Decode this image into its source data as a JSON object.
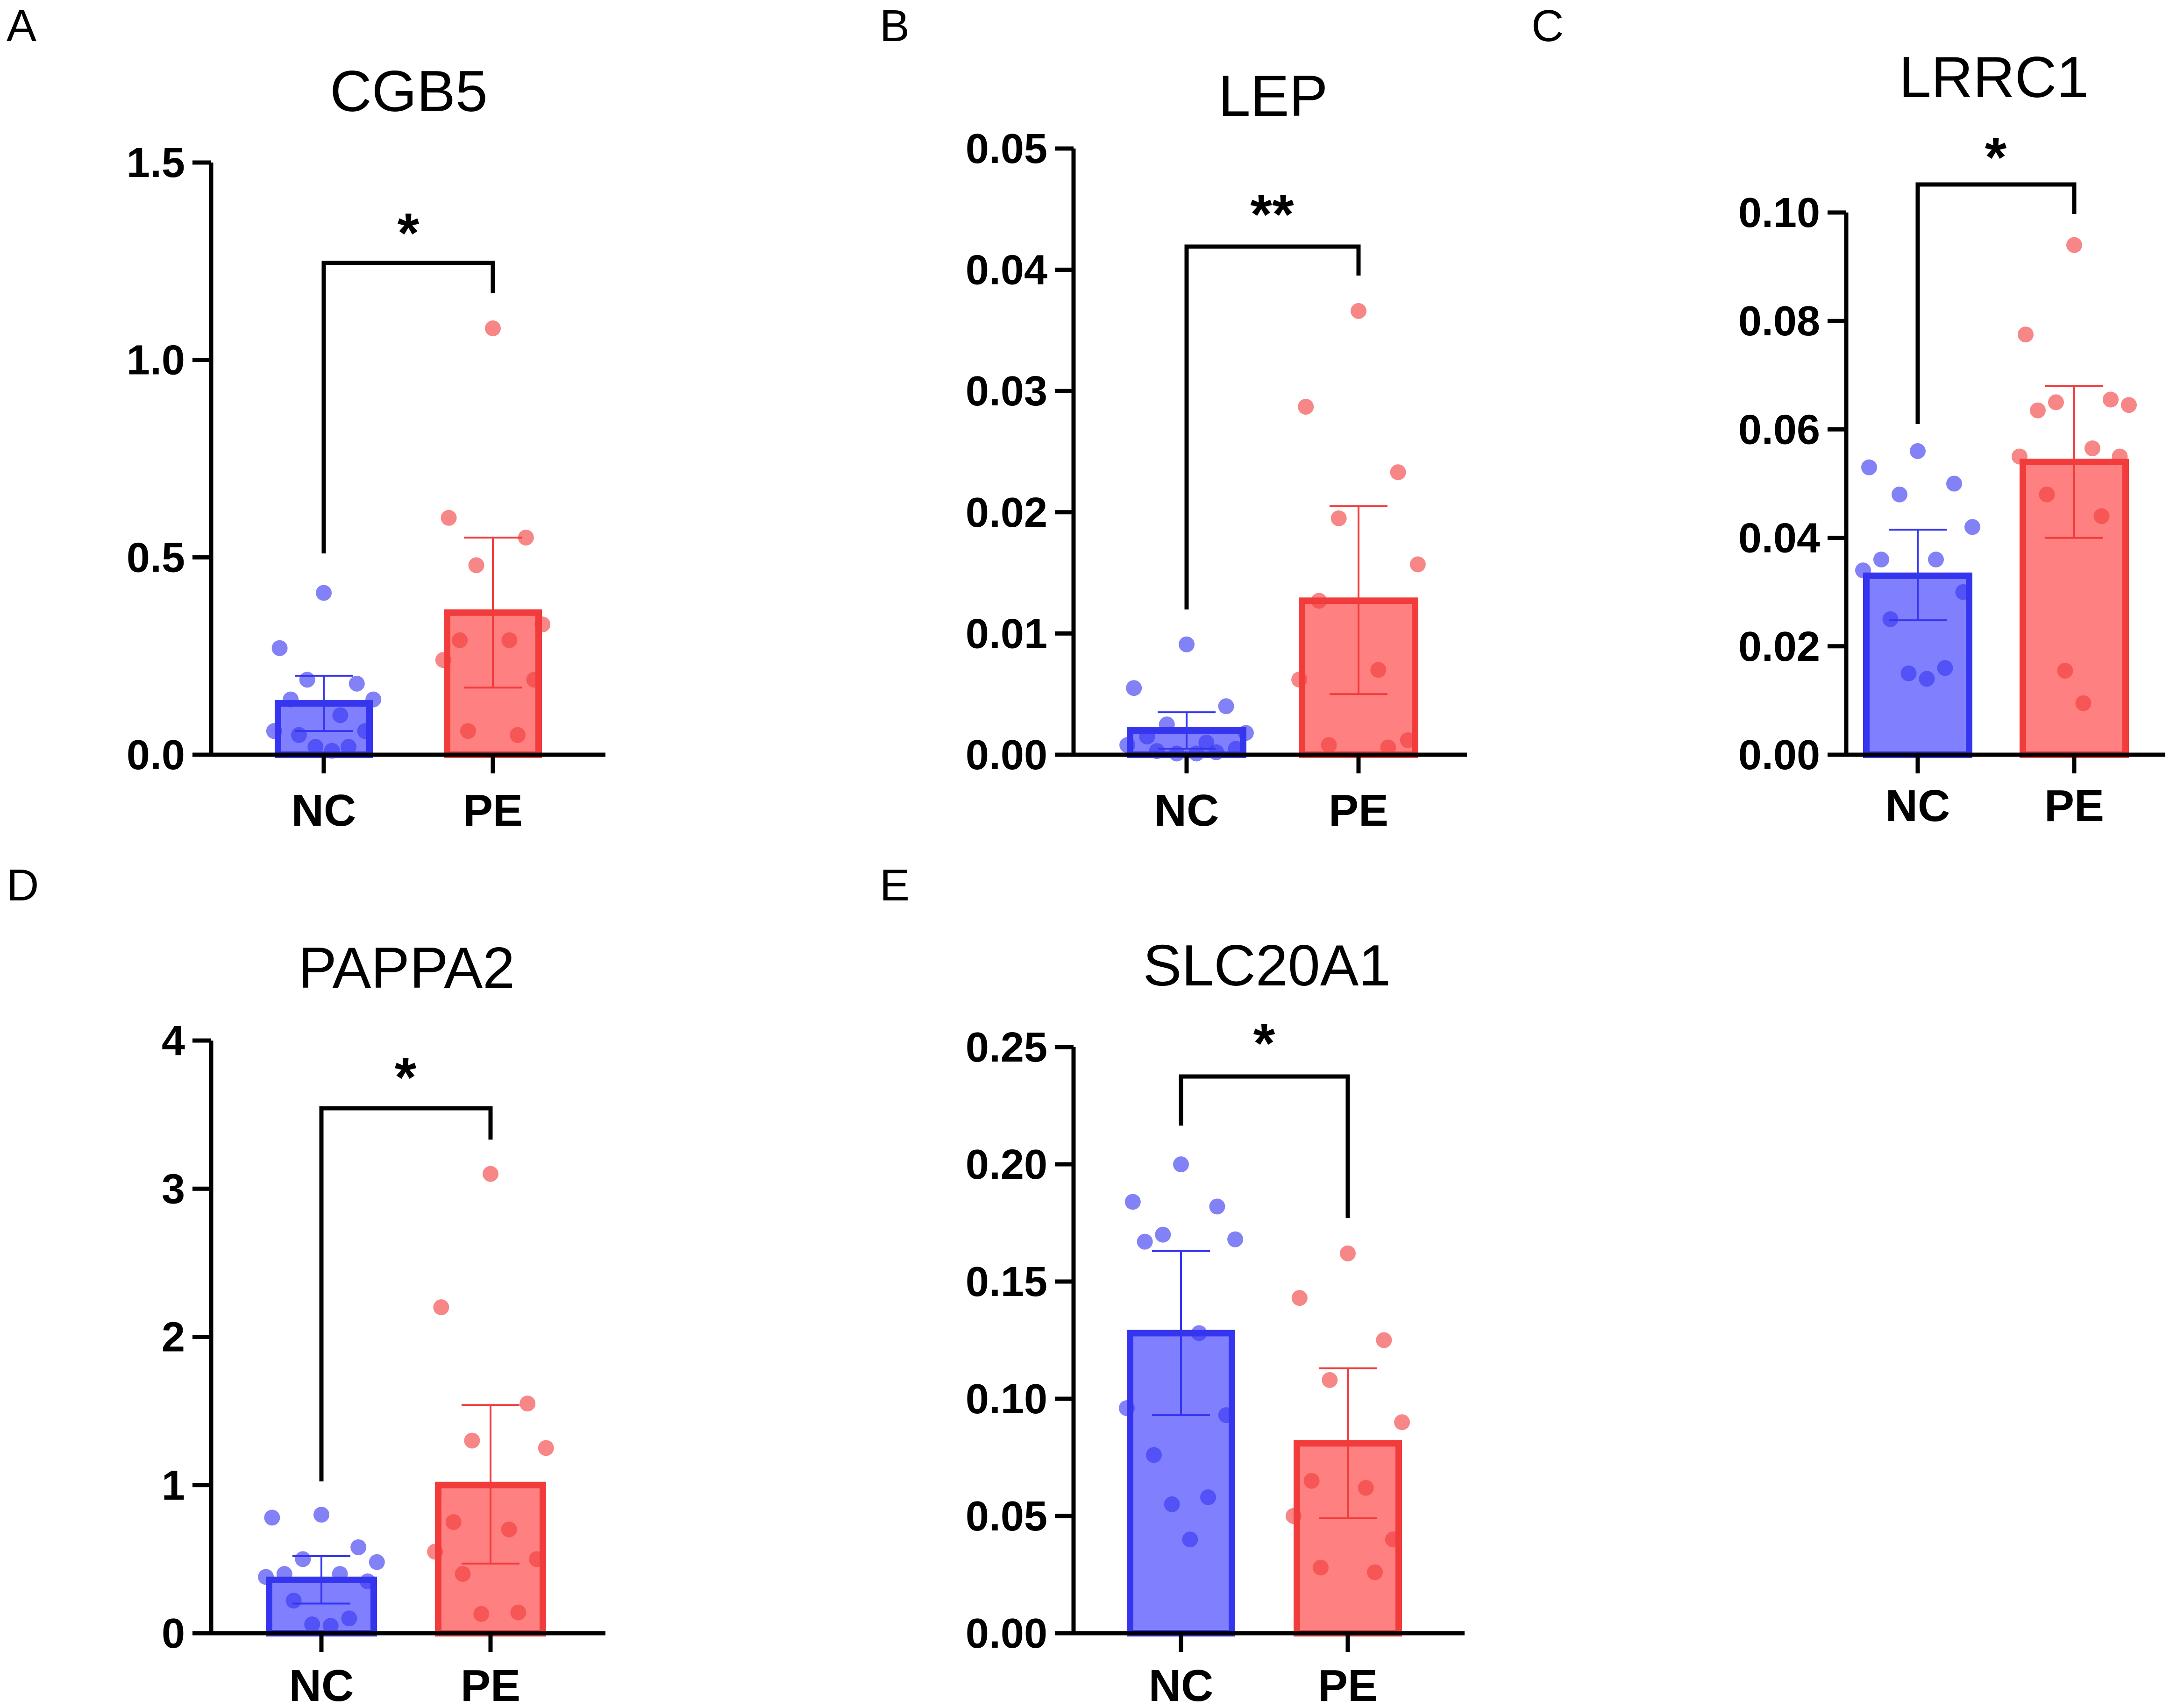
{
  "colors": {
    "nc_fill": "#8080FF",
    "nc_edge": "#3535F0",
    "nc_dot": "#3535F0",
    "pe_fill": "#FF8080",
    "pe_edge": "#F23B3B",
    "pe_dot": "#F23B3B",
    "axis": "#000000"
  },
  "chart_data": [
    {
      "panel": "A",
      "type": "bar",
      "title": "CGB5",
      "categories": [
        "NC",
        "PE"
      ],
      "ylim": [
        0,
        1.5
      ],
      "yticks": [
        "0.0",
        "0.5",
        "1.0",
        "1.5"
      ],
      "yticks_values": [
        0,
        0.5,
        1.0,
        1.5
      ],
      "series": [
        {
          "name": "NC",
          "mean": 0.13,
          "sd_low": 0.06,
          "sd_high": 0.2,
          "points": [
            0.41,
            0.27,
            0.18,
            0.19,
            0.14,
            0.14,
            0.1,
            0.06,
            0.06,
            0.05,
            0.02,
            0.02,
            0.01
          ]
        },
        {
          "name": "PE",
          "mean": 0.36,
          "sd_low": 0.17,
          "sd_high": 0.55,
          "points": [
            1.08,
            0.6,
            0.55,
            0.48,
            0.33,
            0.29,
            0.29,
            0.24,
            0.19,
            0.06,
            0.05
          ]
        }
      ],
      "significance": "*"
    },
    {
      "panel": "B",
      "type": "bar",
      "title": "LEP",
      "categories": [
        "NC",
        "PE"
      ],
      "ylim": [
        0,
        0.05
      ],
      "yticks": [
        "0.00",
        "0.01",
        "0.02",
        "0.03",
        "0.04",
        "0.05"
      ],
      "yticks_values": [
        0,
        0.01,
        0.02,
        0.03,
        0.04,
        0.05
      ],
      "series": [
        {
          "name": "NC",
          "mean": 0.002,
          "sd_low": 0.0005,
          "sd_high": 0.0035,
          "points": [
            0.0091,
            0.0055,
            0.004,
            0.0025,
            0.0018,
            0.0015,
            0.001,
            0.0008,
            0.0005,
            0.0003,
            0.0002,
            0.0001,
            0.0001
          ]
        },
        {
          "name": "PE",
          "mean": 0.0127,
          "sd_low": 0.005,
          "sd_high": 0.0205,
          "points": [
            0.0366,
            0.0287,
            0.0233,
            0.0195,
            0.0157,
            0.0127,
            0.007,
            0.0062,
            0.0012,
            0.0008,
            0.0006
          ]
        }
      ],
      "significance": "**"
    },
    {
      "panel": "C",
      "type": "bar",
      "title": "LRRC1",
      "categories": [
        "NC",
        "PE"
      ],
      "ylim": [
        0,
        0.1
      ],
      "yticks": [
        "0.00",
        "0.02",
        "0.04",
        "0.06",
        "0.08",
        "0.10"
      ],
      "yticks_values": [
        0,
        0.02,
        0.04,
        0.06,
        0.08,
        0.1
      ],
      "series": [
        {
          "name": "NC",
          "mean": 0.033,
          "sd_low": 0.0248,
          "sd_high": 0.0415,
          "points": [
            0.056,
            0.053,
            0.05,
            0.048,
            0.042,
            0.036,
            0.036,
            0.034,
            0.03,
            0.025,
            0.016,
            0.015,
            0.014
          ]
        },
        {
          "name": "PE",
          "mean": 0.054,
          "sd_low": 0.04,
          "sd_high": 0.068,
          "points": [
            0.094,
            0.0775,
            0.0655,
            0.065,
            0.0645,
            0.0635,
            0.0565,
            0.055,
            0.055,
            0.048,
            0.044,
            0.0155,
            0.0095
          ]
        }
      ],
      "significance": "*"
    },
    {
      "panel": "D",
      "type": "bar",
      "title": "PAPPA2",
      "categories": [
        "NC",
        "PE"
      ],
      "ylim": [
        0,
        4
      ],
      "yticks": [
        "0",
        "1",
        "2",
        "3",
        "4"
      ],
      "yticks_values": [
        0,
        1,
        2,
        3,
        4
      ],
      "series": [
        {
          "name": "NC",
          "mean": 0.36,
          "sd_low": 0.2,
          "sd_high": 0.52,
          "points": [
            0.8,
            0.78,
            0.58,
            0.5,
            0.48,
            0.4,
            0.4,
            0.38,
            0.35,
            0.22,
            0.1,
            0.06,
            0.05
          ]
        },
        {
          "name": "PE",
          "mean": 1.0,
          "sd_low": 0.47,
          "sd_high": 1.54,
          "points": [
            3.1,
            2.2,
            1.55,
            1.3,
            1.25,
            0.75,
            0.7,
            0.55,
            0.5,
            0.4,
            0.14,
            0.13
          ]
        }
      ],
      "significance": "*"
    },
    {
      "panel": "E",
      "type": "bar",
      "title": "SLC20A1",
      "categories": [
        "NC",
        "PE"
      ],
      "ylim": [
        0,
        0.25
      ],
      "yticks": [
        "0.00",
        "0.05",
        "0.10",
        "0.15",
        "0.20",
        "0.25"
      ],
      "yticks_values": [
        0,
        0.05,
        0.1,
        0.15,
        0.2,
        0.25
      ],
      "series": [
        {
          "name": "NC",
          "mean": 0.128,
          "sd_low": 0.093,
          "sd_high": 0.163,
          "points": [
            0.2,
            0.184,
            0.182,
            0.17,
            0.168,
            0.167,
            0.128,
            0.096,
            0.093,
            0.076,
            0.058,
            0.055,
            0.04
          ]
        },
        {
          "name": "PE",
          "mean": 0.081,
          "sd_low": 0.049,
          "sd_high": 0.113,
          "points": [
            0.162,
            0.143,
            0.125,
            0.108,
            0.09,
            0.065,
            0.062,
            0.05,
            0.04,
            0.028,
            0.026
          ]
        }
      ],
      "significance": "*"
    }
  ]
}
